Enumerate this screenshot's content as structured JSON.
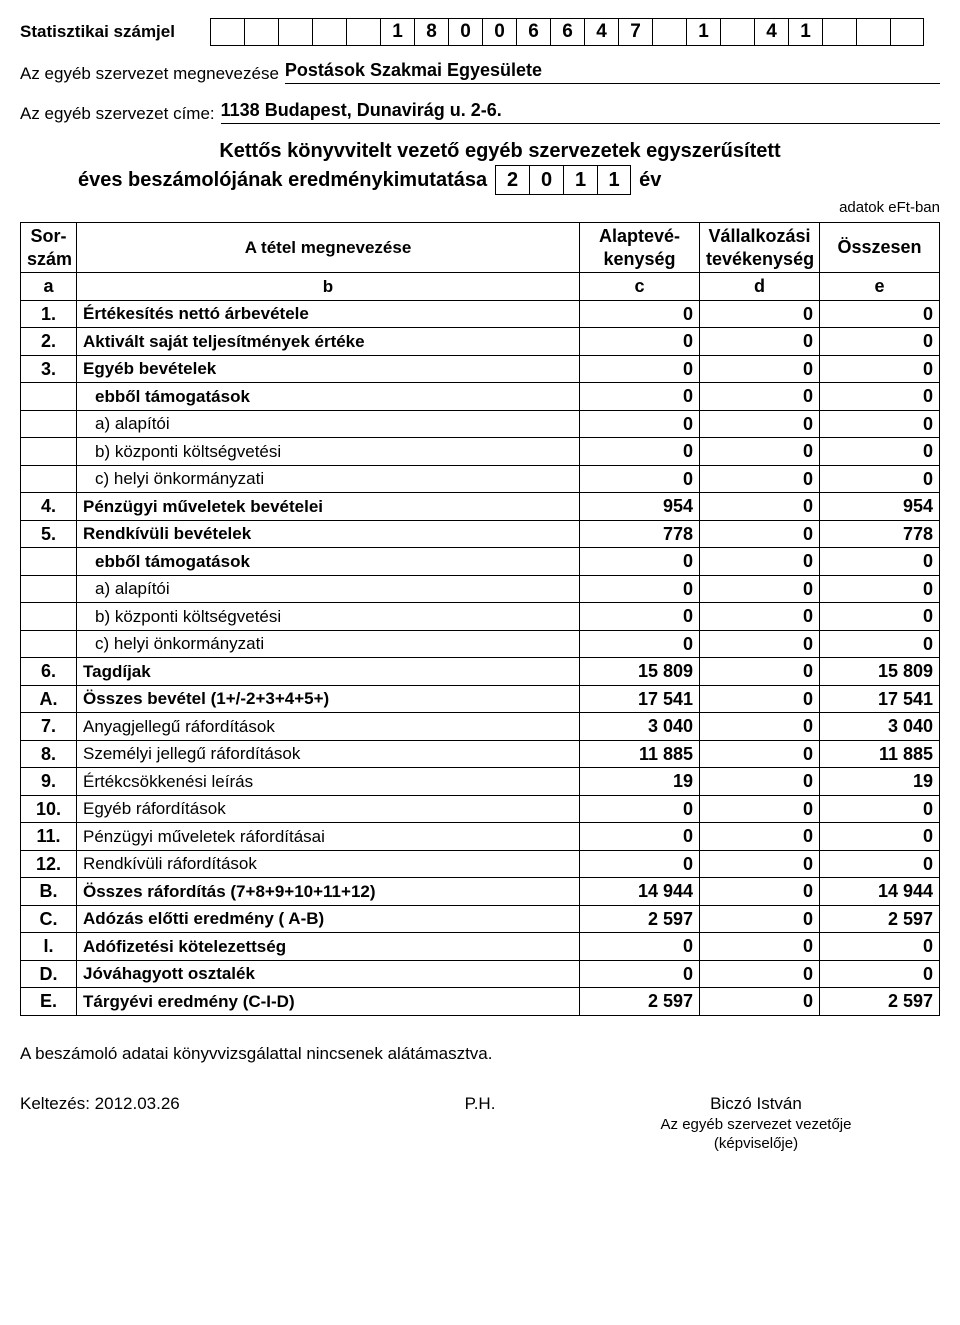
{
  "header": {
    "stat_label": "Statisztikai számjel",
    "stat_cells": [
      "",
      "",
      "",
      "",
      "",
      "1",
      "8",
      "0",
      "0",
      "6",
      "6",
      "4",
      "7",
      "",
      "1",
      "",
      "4",
      "1",
      "",
      "",
      ""
    ],
    "org_name_label": "Az egyéb szervezet megnevezése",
    "org_name_value": "Postások Szakmai Egyesülete",
    "org_addr_label": "Az egyéb szervezet címe:",
    "org_addr_value": "1138 Budapest, Dunavirág u. 2-6."
  },
  "report": {
    "title_line1": "Kettős könyvvitelt vezető egyéb szervezetek egyszerűsített",
    "title_line2_pre": "éves beszámolójának eredménykimutatása",
    "year_digits": [
      "2",
      "0",
      "1",
      "1"
    ],
    "year_suffix": "év",
    "unit": "adatok eFt-ban"
  },
  "table": {
    "headers": {
      "a_top": "Sor-",
      "a_bot": "szám",
      "b": "A tétel megnevezése",
      "c_top": "Alaptevé-",
      "c_bot": "kenység",
      "d_top": "Vállalkozási",
      "d_bot": "tevékenység",
      "e": "Összesen",
      "row2": {
        "a": "a",
        "b": "b",
        "c": "c",
        "d": "d",
        "e": "e"
      }
    },
    "rows": [
      {
        "n": "1.",
        "name": "Értékesítés nettó árbevétele",
        "c": "0",
        "d": "0",
        "e": "0",
        "bold": true
      },
      {
        "n": "2.",
        "name": "Aktivált saját teljesítmények értéke",
        "c": "0",
        "d": "0",
        "e": "0",
        "bold": true
      },
      {
        "n": "3.",
        "name": "Egyéb bevételek",
        "c": "0",
        "d": "0",
        "e": "0",
        "bold": true
      },
      {
        "n": "",
        "name": "ebből támogatások",
        "c": "0",
        "d": "0",
        "e": "0",
        "bold": true,
        "indent": true
      },
      {
        "n": "",
        "name": "a) alapítói",
        "c": "0",
        "d": "0",
        "e": "0",
        "indent": true
      },
      {
        "n": "",
        "name": "b) központi költségvetési",
        "c": "0",
        "d": "0",
        "e": "0",
        "indent": true
      },
      {
        "n": "",
        "name": "c) helyi önkormányzati",
        "c": "0",
        "d": "0",
        "e": "0",
        "indent": true
      },
      {
        "n": "4.",
        "name": "Pénzügyi műveletek bevételei",
        "c": "954",
        "d": "0",
        "e": "954",
        "bold": true
      },
      {
        "n": "5.",
        "name": "Rendkívüli bevételek",
        "c": "778",
        "d": "0",
        "e": "778",
        "bold": true
      },
      {
        "n": "",
        "name": "ebből támogatások",
        "c": "0",
        "d": "0",
        "e": "0",
        "bold": true,
        "indent": true
      },
      {
        "n": "",
        "name": "a) alapítói",
        "c": "0",
        "d": "0",
        "e": "0",
        "indent": true
      },
      {
        "n": "",
        "name": "b) központi költségvetési",
        "c": "0",
        "d": "0",
        "e": "0",
        "indent": true
      },
      {
        "n": "",
        "name": "c) helyi önkormányzati",
        "c": "0",
        "d": "0",
        "e": "0",
        "indent": true
      },
      {
        "n": "6.",
        "name": "Tagdíjak",
        "c": "15 809",
        "d": "0",
        "e": "15 809",
        "bold": true
      },
      {
        "n": "A.",
        "name": "Összes bevétel (1+/-2+3+4+5+)",
        "c": "17 541",
        "d": "0",
        "e": "17 541",
        "bold": true
      },
      {
        "n": "7.",
        "name": "Anyagjellegű ráfordítások",
        "c": "3 040",
        "d": "0",
        "e": "3 040"
      },
      {
        "n": "8.",
        "name": "Személyi jellegű ráfordítások",
        "c": "11 885",
        "d": "0",
        "e": "11 885"
      },
      {
        "n": "9.",
        "name": "Értékcsökkenési leírás",
        "c": "19",
        "d": "0",
        "e": "19"
      },
      {
        "n": "10.",
        "name": "Egyéb ráfordítások",
        "c": "0",
        "d": "0",
        "e": "0"
      },
      {
        "n": "11.",
        "name": "Pénzügyi műveletek ráfordításai",
        "c": "0",
        "d": "0",
        "e": "0"
      },
      {
        "n": "12.",
        "name": "Rendkívüli ráfordítások",
        "c": "0",
        "d": "0",
        "e": "0"
      },
      {
        "n": "B.",
        "name": "Összes ráfordítás (7+8+9+10+11+12)",
        "c": "14 944",
        "d": "0",
        "e": "14 944",
        "bold": true
      },
      {
        "n": "C.",
        "name": "Adózás előtti  eredmény ( A-B)",
        "c": "2 597",
        "d": "0",
        "e": "2 597",
        "bold": true
      },
      {
        "n": "I.",
        "name": "Adófizetési kötelezettség",
        "c": "0",
        "d": "0",
        "e": "0",
        "bold": true
      },
      {
        "n": "D.",
        "name": "Jóváhagyott osztalék",
        "c": "0",
        "d": "0",
        "e": "0",
        "bold": true
      },
      {
        "n": "E.",
        "name": "Tárgyévi eredmény (C-I-D)",
        "c": "2 597",
        "d": "0",
        "e": "2 597",
        "bold": true
      }
    ]
  },
  "footer": {
    "note": "A beszámoló adatai könyvvizsgálattal nincsenek alátámasztva.",
    "date_label": "Keltezés:",
    "date_value": "2012.03.26",
    "ph": "P.H.",
    "signer": "Biczó István",
    "sub1": "Az egyéb szervezet vezetője",
    "sub2": "(képviselője)"
  }
}
